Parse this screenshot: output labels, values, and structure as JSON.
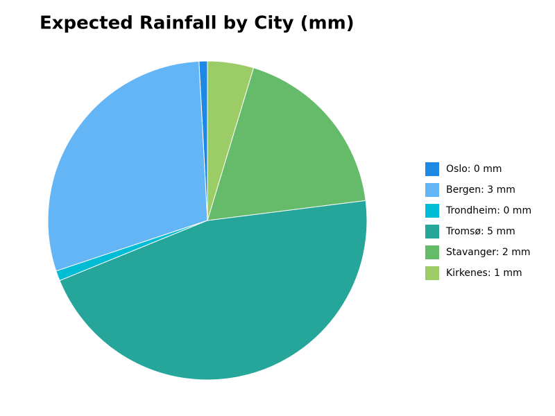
{
  "chart_data": {
    "type": "pie",
    "title": "Expected Rainfall by City (mm)",
    "categories": [
      "Oslo: 0 mm",
      "Bergen: 3 mm",
      "Trondheim: 0 mm",
      "Tromsø: 5 mm",
      "Stavanger: 2 mm",
      "Kirkenes: 1 mm"
    ],
    "values": [
      0.1,
      3.45,
      0.12,
      5.4,
      2.16,
      0.55
    ],
    "colors": [
      "#1e88e5",
      "#64b5f6",
      "#00bcd4",
      "#26a69a",
      "#66bb6a",
      "#9ccc65"
    ],
    "start_angle": 90,
    "counterclockwise": true,
    "legend": "right"
  }
}
